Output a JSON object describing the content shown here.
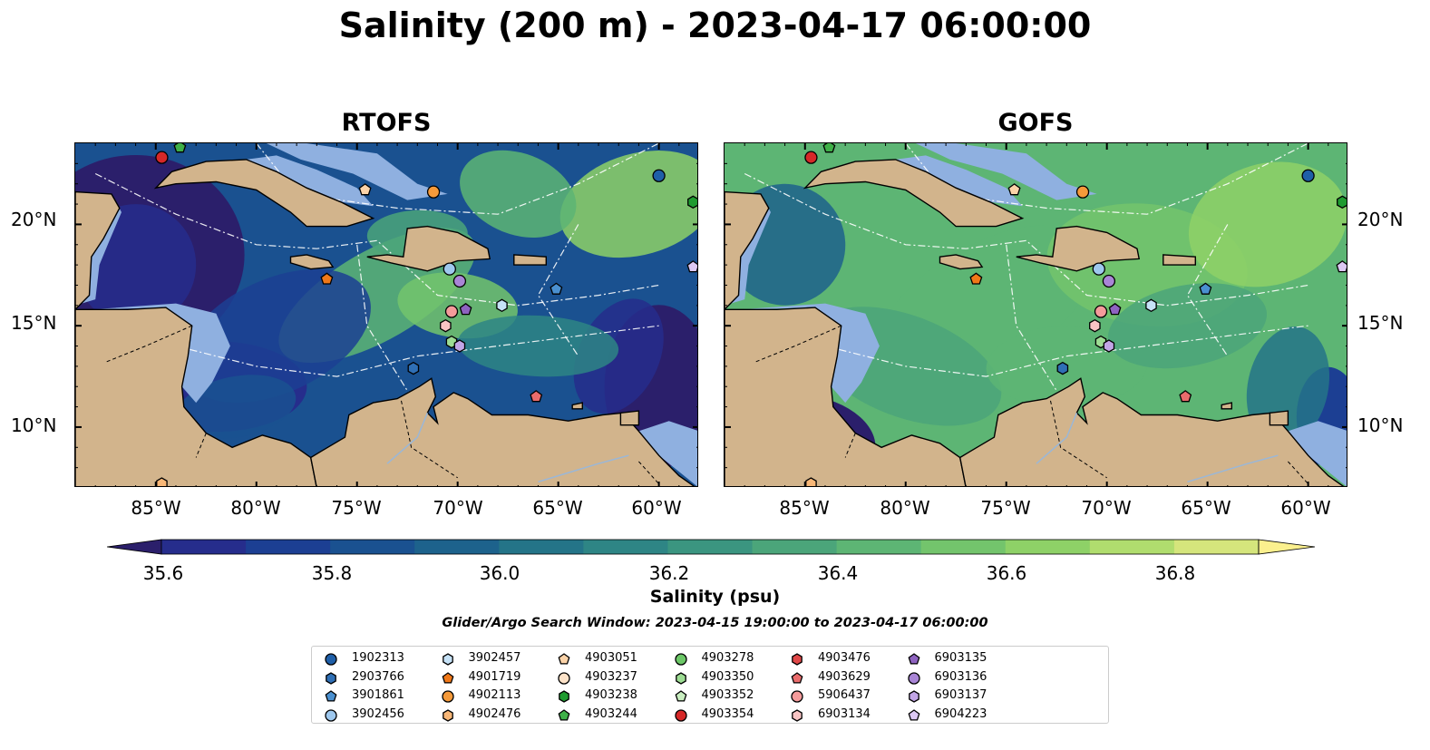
{
  "title": "Salinity (200 m) - 2023-04-17 06:00:00",
  "panels": [
    {
      "name": "RTOFS",
      "palette": "low"
    },
    {
      "name": "GOFS",
      "palette": "high"
    }
  ],
  "lat_labels": [
    "20°N",
    "15°N",
    "10°N"
  ],
  "lon_labels": [
    "85°W",
    "80°W",
    "75°W",
    "70°W",
    "65°W",
    "60°W"
  ],
  "colorbar": {
    "label": "Salinity (psu)",
    "ticks": [
      "35.6",
      "35.8",
      "36.0",
      "36.2",
      "36.4",
      "36.6",
      "36.8"
    ],
    "colors": [
      "#2b1f6b",
      "#262d8c",
      "#1c3f93",
      "#1a5190",
      "#1d628c",
      "#247488",
      "#2e8585",
      "#3b9580",
      "#4ba57a",
      "#5db574",
      "#73c46c",
      "#8ed167",
      "#b0dd6e",
      "#d5e57c",
      "#fbf08e"
    ],
    "extend": "both"
  },
  "search_window": "Glider/Argo Search Window: 2023-04-15 19:00:00 to 2023-04-17 06:00:00",
  "legend": [
    {
      "id": "1902313",
      "marker": "circle",
      "color": "#1f5fa8"
    },
    {
      "id": "2903766",
      "marker": "hexagon",
      "color": "#2f6fb5"
    },
    {
      "id": "3901861",
      "marker": "pentagon",
      "color": "#4a90d0"
    },
    {
      "id": "3902456",
      "marker": "circle",
      "color": "#9ec8ee"
    },
    {
      "id": "3902457",
      "marker": "hexagon",
      "color": "#c6e2f7"
    },
    {
      "id": "4901719",
      "marker": "pentagon",
      "color": "#f07818"
    },
    {
      "id": "4902113",
      "marker": "circle",
      "color": "#f59a3a"
    },
    {
      "id": "4902476",
      "marker": "hexagon",
      "color": "#f8b777"
    },
    {
      "id": "4903051",
      "marker": "pentagon",
      "color": "#fbd3a8"
    },
    {
      "id": "4903237",
      "marker": "circle",
      "color": "#fde3c9"
    },
    {
      "id": "4903238",
      "marker": "hexagon",
      "color": "#1f9b30"
    },
    {
      "id": "4903244",
      "marker": "pentagon",
      "color": "#3fb048"
    },
    {
      "id": "4903278",
      "marker": "circle",
      "color": "#6cc767"
    },
    {
      "id": "4903350",
      "marker": "hexagon",
      "color": "#9ddc93"
    },
    {
      "id": "4903352",
      "marker": "pentagon",
      "color": "#c9eec0"
    },
    {
      "id": "4903354",
      "marker": "circle",
      "color": "#d62828"
    },
    {
      "id": "4903476",
      "marker": "hexagon",
      "color": "#e04848"
    },
    {
      "id": "4903629",
      "marker": "pentagon",
      "color": "#ea6c6c"
    },
    {
      "id": "5906437",
      "marker": "circle",
      "color": "#f59b9b"
    },
    {
      "id": "6903134",
      "marker": "hexagon",
      "color": "#f9c4c4"
    },
    {
      "id": "6903135",
      "marker": "pentagon",
      "color": "#8e63c0"
    },
    {
      "id": "6903136",
      "marker": "circle",
      "color": "#a985d6"
    },
    {
      "id": "6903137",
      "marker": "hexagon",
      "color": "#c2a5e6"
    },
    {
      "id": "6904223",
      "marker": "pentagon",
      "color": "#dcc8f3"
    }
  ],
  "floats": [
    {
      "id": "4903354",
      "lon": -84.7,
      "lat": 23.3
    },
    {
      "id": "4903244",
      "lon": -83.8,
      "lat": 23.8
    },
    {
      "id": "4903051",
      "lon": -74.6,
      "lat": 21.7
    },
    {
      "id": "4902113",
      "lon": -71.2,
      "lat": 21.6
    },
    {
      "id": "1902313",
      "lon": -60.0,
      "lat": 22.4
    },
    {
      "id": "4903238",
      "lon": -58.3,
      "lat": 21.1
    },
    {
      "id": "6904223",
      "lon": -58.3,
      "lat": 17.9
    },
    {
      "id": "4901719",
      "lon": -76.5,
      "lat": 17.3
    },
    {
      "id": "3902456",
      "lon": -70.4,
      "lat": 17.8
    },
    {
      "id": "6903136",
      "lon": -69.9,
      "lat": 17.2
    },
    {
      "id": "3902457",
      "lon": -67.8,
      "lat": 16.0
    },
    {
      "id": "3901861",
      "lon": -65.1,
      "lat": 16.8
    },
    {
      "id": "5906437",
      "lon": -70.3,
      "lat": 15.7
    },
    {
      "id": "6903135",
      "lon": -69.6,
      "lat": 15.8
    },
    {
      "id": "6903134",
      "lon": -70.6,
      "lat": 15.0
    },
    {
      "id": "4903350",
      "lon": -70.3,
      "lat": 14.2
    },
    {
      "id": "6903137",
      "lon": -69.9,
      "lat": 14.0
    },
    {
      "id": "2903766",
      "lon": -72.2,
      "lat": 12.9
    },
    {
      "id": "4903629",
      "lon": -66.1,
      "lat": 11.5
    },
    {
      "id": "4902476",
      "lon": -84.7,
      "lat": 7.2
    }
  ]
}
